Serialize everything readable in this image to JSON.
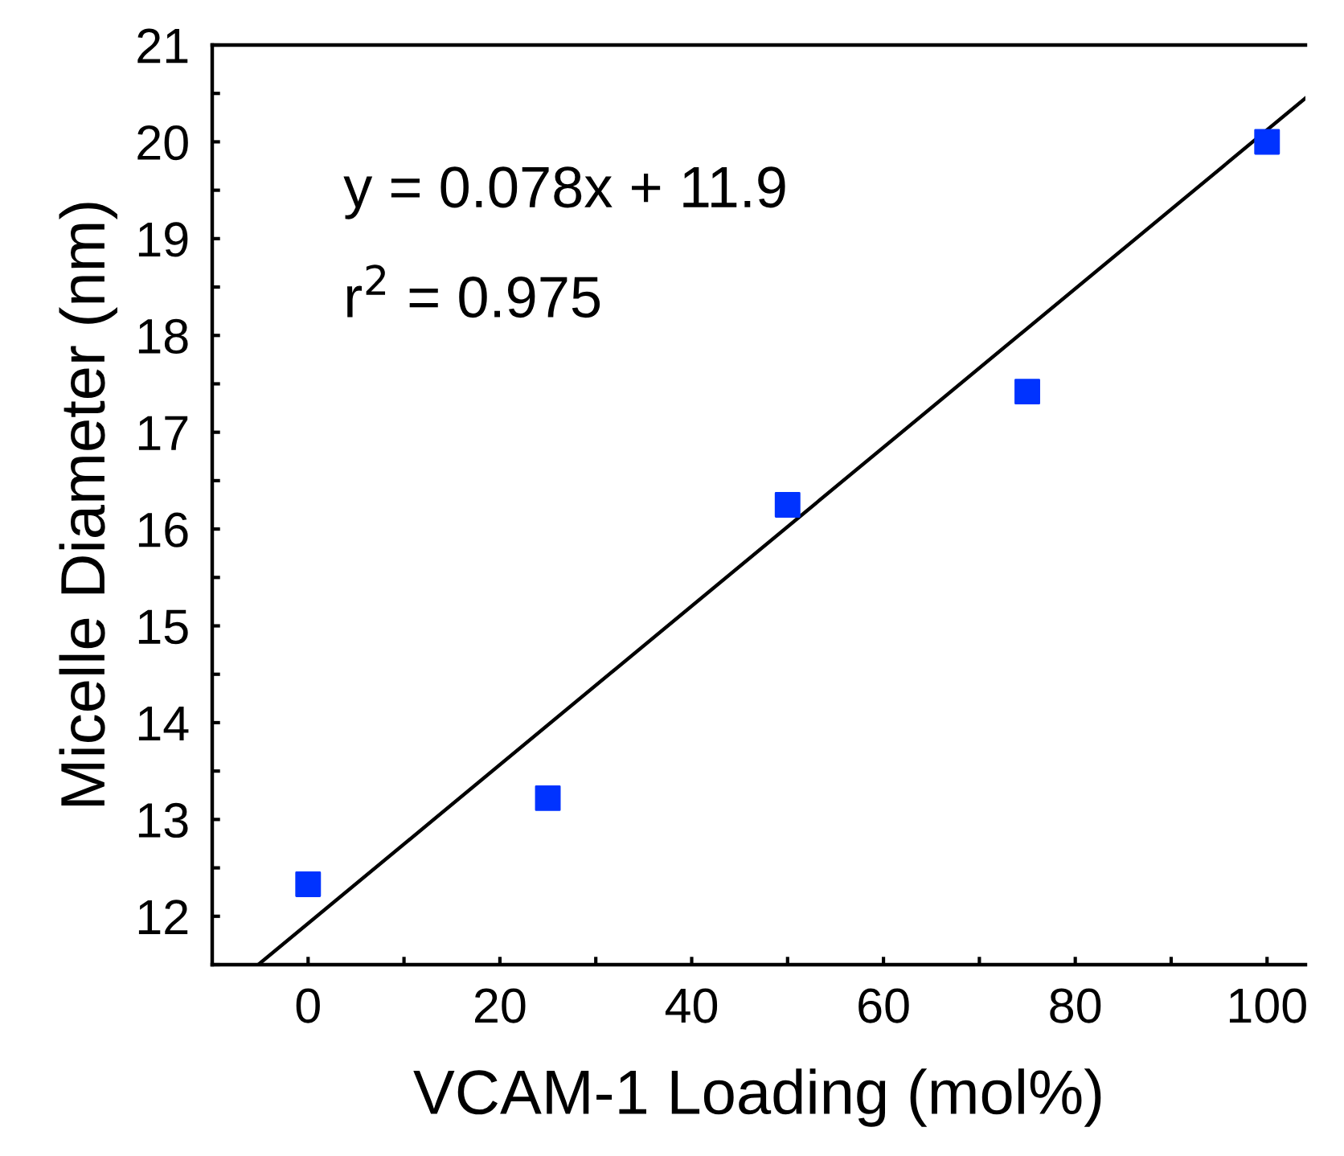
{
  "chart_data": {
    "type": "scatter",
    "xlabel": "VCAM-1 Loading (mol%)",
    "ylabel": "Micelle Diameter (nm)",
    "x": [
      0,
      25,
      50,
      75,
      100
    ],
    "series": [
      {
        "color": "#0033ff",
        "values": [
          12.33,
          13.22,
          16.25,
          17.42,
          20.0
        ],
        "marker": "square"
      },
      {
        "type": "line",
        "color": "#000000",
        "x": [
          -5.2,
          104
        ],
        "values": [
          11.5,
          20.45
        ],
        "marker": "none"
      }
    ],
    "xlim": [
      -10,
      104
    ],
    "ylim": [
      11.5,
      21
    ],
    "xticks": [
      0,
      {
        "value": 10,
        "label": null
      },
      20,
      {
        "value": 30,
        "label": null
      },
      40,
      {
        "value": 50,
        "label": null
      },
      60,
      {
        "value": 70,
        "label": null
      },
      80,
      {
        "value": 90,
        "label": null
      },
      100
    ],
    "yticks": [
      {
        "value": 11.5,
        "label": null
      },
      12,
      {
        "value": 12.5,
        "label": null
      },
      13,
      {
        "value": 13.5,
        "label": null
      },
      14,
      {
        "value": 14.5,
        "label": null
      },
      15,
      {
        "value": 15.5,
        "label": null
      },
      16,
      {
        "value": 16.5,
        "label": null
      },
      17,
      {
        "value": 17.5,
        "label": null
      },
      18,
      {
        "value": 18.5,
        "label": null
      },
      19,
      {
        "value": 19.5,
        "label": null
      },
      20,
      {
        "value": 20.5,
        "label": null
      },
      21
    ],
    "annotations": [
      "y = 0.078x + 11.9",
      "r$^{2}$ = 0.975"
    ],
    "grid": false,
    "legend": false
  }
}
